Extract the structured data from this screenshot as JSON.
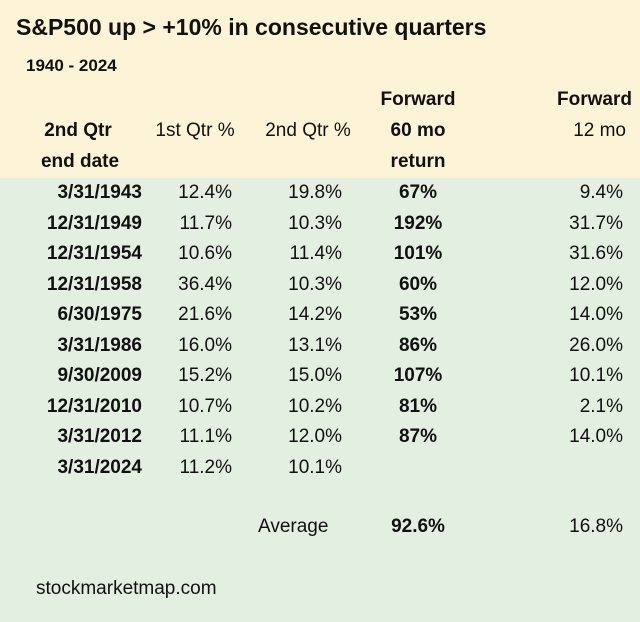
{
  "title": "S&P500 up > +10% in consecutive quarters",
  "subtitle": "1940 - 2024",
  "headers": {
    "date_line1": "2nd Qtr",
    "date_line2": "end date",
    "q1": "1st Qtr %",
    "q2": "2nd Qtr %",
    "fwd60_line1": "Forward",
    "fwd60_line2": "60 mo",
    "fwd60_line3": "return",
    "fwd12_line1": "Forward",
    "fwd12_line2": "12 mo"
  },
  "rows": [
    {
      "date": "3/31/1943",
      "q1": "12.4%",
      "q2": "19.8%",
      "fwd60": "67%",
      "fwd12": "9.4%"
    },
    {
      "date": "12/31/1949",
      "q1": "11.7%",
      "q2": "10.3%",
      "fwd60": "192%",
      "fwd12": "31.7%"
    },
    {
      "date": "12/31/1954",
      "q1": "10.6%",
      "q2": "11.4%",
      "fwd60": "101%",
      "fwd12": "31.6%"
    },
    {
      "date": "12/31/1958",
      "q1": "36.4%",
      "q2": "10.3%",
      "fwd60": "60%",
      "fwd12": "12.0%"
    },
    {
      "date": "6/30/1975",
      "q1": "21.6%",
      "q2": "14.2%",
      "fwd60": "53%",
      "fwd12": "14.0%"
    },
    {
      "date": "3/31/1986",
      "q1": "16.0%",
      "q2": "13.1%",
      "fwd60": "86%",
      "fwd12": "26.0%"
    },
    {
      "date": "9/30/2009",
      "q1": "15.2%",
      "q2": "15.0%",
      "fwd60": "107%",
      "fwd12": "10.1%"
    },
    {
      "date": "12/31/2010",
      "q1": "10.7%",
      "q2": "10.2%",
      "fwd60": "81%",
      "fwd12": "2.1%"
    },
    {
      "date": "3/31/2012",
      "q1": "11.1%",
      "q2": "12.0%",
      "fwd60": "87%",
      "fwd12": "14.0%"
    },
    {
      "date": "3/31/2024",
      "q1": "11.2%",
      "q2": "10.1%",
      "fwd60": "",
      "fwd12": ""
    }
  ],
  "average": {
    "label": "Average",
    "fwd60": "92.6%",
    "fwd12": "16.8%"
  },
  "footer": "stockmarketmap.com",
  "colors": {
    "header_bg": "#fdf3d7",
    "body_bg": "#e3efe1"
  }
}
